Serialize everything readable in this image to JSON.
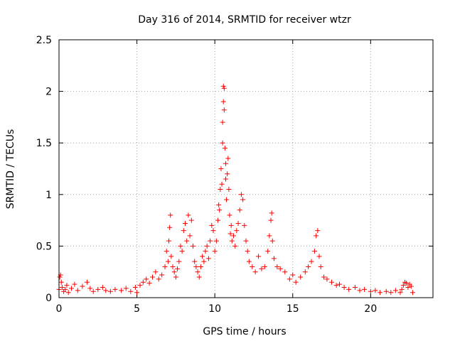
{
  "chart_data": {
    "type": "scatter",
    "title": "Day 316 of 2014, SRMTID for receiver wtzr",
    "xlabel": "GPS time / hours",
    "ylabel": "SRMTID / TECUs",
    "xlim": [
      0,
      24
    ],
    "ylim": [
      0,
      2.5
    ],
    "xticks": [
      0,
      5,
      10,
      15,
      20
    ],
    "yticks": [
      0,
      0.5,
      1,
      1.5,
      2,
      2.5
    ],
    "xtick_labels": [
      "0",
      "5",
      "10",
      "15",
      "20"
    ],
    "ytick_labels": [
      "0",
      "0.5",
      "1",
      "1.5",
      "2",
      "2.5"
    ],
    "grid": true,
    "marker": "+",
    "series": [
      {
        "name": "SRMTID",
        "color": "#ff0000",
        "x": [
          0.0,
          0.05,
          0.1,
          0.15,
          0.2,
          0.3,
          0.4,
          0.5,
          0.6,
          0.8,
          1.0,
          1.2,
          1.5,
          1.8,
          2.0,
          2.2,
          2.5,
          2.8,
          3.0,
          3.3,
          3.6,
          4.0,
          4.3,
          4.6,
          4.9,
          5.0,
          5.2,
          5.4,
          5.6,
          5.8,
          6.0,
          6.2,
          6.4,
          6.6,
          6.8,
          6.9,
          7.0,
          7.05,
          7.1,
          7.15,
          7.2,
          7.3,
          7.4,
          7.5,
          7.6,
          7.7,
          7.8,
          7.9,
          8.0,
          8.1,
          8.2,
          8.3,
          8.4,
          8.5,
          8.6,
          8.7,
          8.8,
          8.9,
          9.0,
          9.1,
          9.2,
          9.3,
          9.4,
          9.5,
          9.6,
          9.7,
          9.8,
          9.9,
          10.0,
          10.1,
          10.2,
          10.25,
          10.3,
          10.35,
          10.4,
          10.45,
          10.5,
          10.5,
          10.55,
          10.55,
          10.6,
          10.6,
          10.65,
          10.7,
          10.7,
          10.75,
          10.8,
          10.85,
          10.9,
          10.95,
          11.0,
          11.05,
          11.1,
          11.2,
          11.3,
          11.4,
          11.5,
          11.6,
          11.7,
          11.8,
          11.9,
          12.0,
          12.1,
          12.2,
          12.4,
          12.6,
          12.8,
          13.0,
          13.2,
          13.4,
          13.5,
          13.6,
          13.65,
          13.7,
          13.8,
          14.0,
          14.2,
          14.5,
          14.8,
          15.0,
          15.2,
          15.5,
          15.8,
          16.0,
          16.2,
          16.4,
          16.5,
          16.6,
          16.7,
          16.8,
          17.0,
          17.2,
          17.5,
          17.8,
          18.0,
          18.3,
          18.6,
          19.0,
          19.3,
          19.6,
          20.0,
          20.3,
          20.6,
          21.0,
          21.3,
          21.6,
          21.9,
          22.0,
          22.1,
          22.2,
          22.3,
          22.4,
          22.5,
          22.6,
          22.7
        ],
        "y": [
          0.08,
          0.2,
          0.22,
          0.15,
          0.1,
          0.06,
          0.08,
          0.12,
          0.05,
          0.09,
          0.13,
          0.07,
          0.11,
          0.15,
          0.09,
          0.06,
          0.08,
          0.1,
          0.07,
          0.06,
          0.08,
          0.07,
          0.09,
          0.06,
          0.1,
          0.05,
          0.12,
          0.15,
          0.18,
          0.14,
          0.2,
          0.25,
          0.18,
          0.22,
          0.3,
          0.45,
          0.35,
          0.55,
          0.68,
          0.8,
          0.4,
          0.3,
          0.25,
          0.2,
          0.28,
          0.35,
          0.5,
          0.45,
          0.65,
          0.72,
          0.55,
          0.8,
          0.6,
          0.75,
          0.5,
          0.35,
          0.3,
          0.25,
          0.2,
          0.3,
          0.4,
          0.35,
          0.45,
          0.5,
          0.38,
          0.55,
          0.7,
          0.65,
          0.45,
          0.55,
          0.75,
          0.9,
          0.85,
          1.05,
          1.25,
          1.1,
          1.5,
          1.7,
          1.9,
          2.05,
          2.03,
          1.82,
          1.45,
          1.3,
          1.15,
          0.95,
          1.2,
          1.35,
          1.05,
          0.8,
          0.62,
          0.7,
          0.55,
          0.6,
          0.5,
          0.65,
          0.72,
          0.85,
          1.0,
          0.95,
          0.7,
          0.55,
          0.45,
          0.35,
          0.3,
          0.25,
          0.4,
          0.28,
          0.3,
          0.45,
          0.6,
          0.75,
          0.82,
          0.55,
          0.38,
          0.3,
          0.28,
          0.25,
          0.18,
          0.22,
          0.15,
          0.2,
          0.25,
          0.3,
          0.35,
          0.45,
          0.6,
          0.65,
          0.4,
          0.3,
          0.2,
          0.18,
          0.15,
          0.12,
          0.13,
          0.1,
          0.08,
          0.1,
          0.07,
          0.08,
          0.06,
          0.07,
          0.05,
          0.06,
          0.05,
          0.07,
          0.05,
          0.08,
          0.12,
          0.15,
          0.14,
          0.1,
          0.13,
          0.11,
          0.05
        ]
      }
    ]
  }
}
